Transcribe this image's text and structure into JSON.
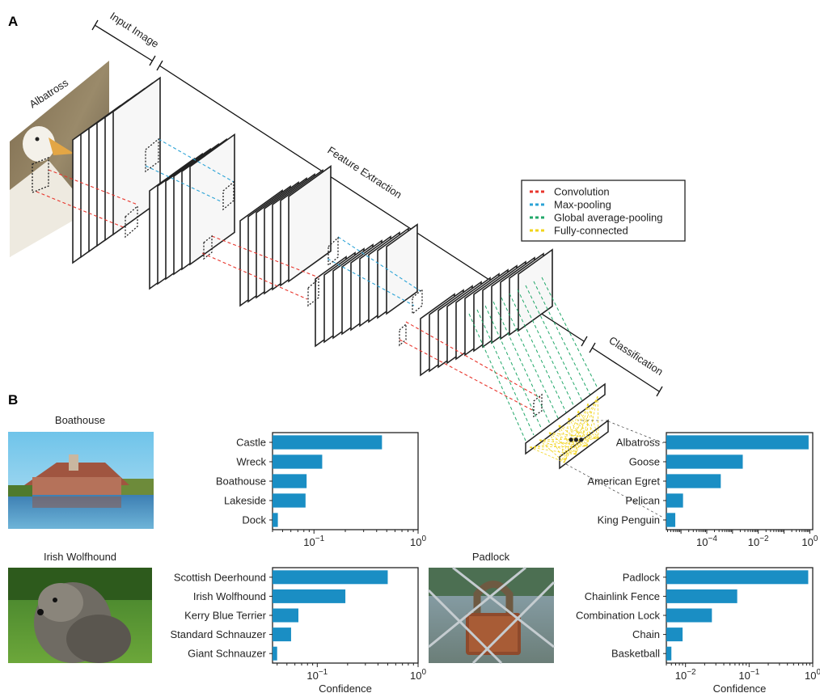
{
  "panels": {
    "a": "A",
    "b": "B"
  },
  "architecture": {
    "input_image_label": "Input Image",
    "feature_extraction_label": "Feature Extraction",
    "classification_label": "Classification",
    "input_class": "Albatross"
  },
  "legend": {
    "items": [
      {
        "label": "Convolution",
        "color": "#e8352c"
      },
      {
        "label": "Max-pooling",
        "color": "#2ba3d6"
      },
      {
        "label": "Global average-pooling",
        "color": "#22a86a"
      },
      {
        "label": "Fully-connected",
        "color": "#f2d41b"
      }
    ]
  },
  "images": {
    "boathouse": "Boathouse",
    "irish_wolfhound": "Irish Wolfhound",
    "padlock": "Padlock"
  },
  "bar_color": "#1a8ec4",
  "chart_data": [
    {
      "type": "bar",
      "orientation": "horizontal",
      "title": "",
      "xscale": "log",
      "xlim": [
        0.04,
        1
      ],
      "xticks": [
        "10^-1",
        "10^0"
      ],
      "xlabel": "",
      "categories": [
        "Castle",
        "Wreck",
        "Boathouse",
        "Lakeside",
        "Dock"
      ],
      "values": [
        0.45,
        0.12,
        0.085,
        0.083,
        0.045
      ]
    },
    {
      "type": "bar",
      "orientation": "horizontal",
      "title": "",
      "xscale": "log",
      "xlim": [
        2.7e-06,
        1.3
      ],
      "xticks": [
        "10^-4",
        "10^-2",
        "10^0"
      ],
      "xlabel": "",
      "categories": [
        "Albatross",
        "Goose",
        "American Egret",
        "Pelican",
        "King Penguin"
      ],
      "values": [
        0.9,
        0.0025,
        0.00035,
        1.2e-05,
        6e-06
      ]
    },
    {
      "type": "bar",
      "orientation": "horizontal",
      "title": "",
      "xscale": "log",
      "xlim": [
        0.036,
        1
      ],
      "xticks": [
        "10^-1",
        "10^0"
      ],
      "xlabel": "Confidence",
      "categories": [
        "Scottish Deerhound",
        "Irish Wolfhound",
        "Kerry Blue Terrier",
        "Standard Schnauzer",
        "Giant Schnauzer"
      ],
      "values": [
        0.5,
        0.19,
        0.065,
        0.055,
        0.04
      ]
    },
    {
      "type": "bar",
      "orientation": "horizontal",
      "title": "",
      "xscale": "log",
      "xlim": [
        0.005,
        1
      ],
      "xticks": [
        "10^-2",
        "10^-1",
        "10^0"
      ],
      "xlabel": "Confidence",
      "categories": [
        "Padlock",
        "Chainlink Fence",
        "Combination Lock",
        "Chain",
        "Basketball"
      ],
      "values": [
        0.85,
        0.065,
        0.026,
        0.009,
        0.006
      ]
    }
  ]
}
